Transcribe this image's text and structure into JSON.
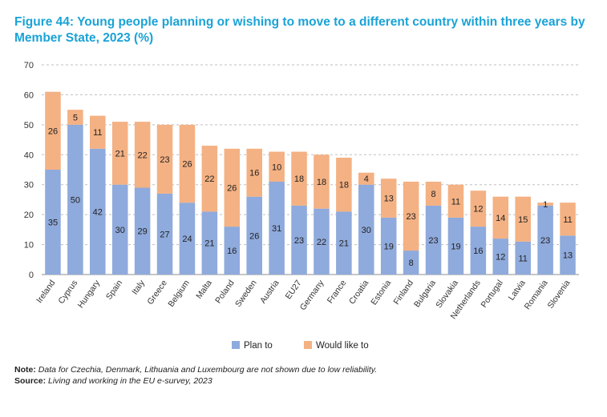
{
  "title": "Figure 44: Young people planning or wishing to move to a different country within three years by Member State, 2023 (%)",
  "note": {
    "note_label": "Note:",
    "note_text": "Data for Czechia, Denmark, Lithuania and Luxembourg are not shown due to low reliability.",
    "source_label": "Source:",
    "source_text": "Living and working in the EU e-survey, 2023"
  },
  "colors": {
    "title": "#1aa3d6",
    "plan_to": "#8faadc",
    "would_like_to": "#f4b183",
    "grid": "#bfbfbf"
  },
  "chart_data": {
    "type": "bar",
    "stacked": true,
    "categories": [
      "Ireland",
      "Cyprus",
      "Hungary",
      "Spain",
      "Italy",
      "Greece",
      "Belgium",
      "Malta",
      "Poland",
      "Sweden",
      "Austria",
      "EU27",
      "Germany",
      "France",
      "Croatia",
      "Estonia",
      "Finland",
      "Bulgaria",
      "Slovakia",
      "Netherlands",
      "Portugal",
      "Latvia",
      "Romania",
      "Slovenia"
    ],
    "series": [
      {
        "name": "Plan to",
        "color": "#8faadc",
        "values": [
          35,
          50,
          42,
          30,
          29,
          27,
          24,
          21,
          16,
          26,
          31,
          23,
          22,
          21,
          30,
          19,
          8,
          23,
          19,
          16,
          12,
          11,
          23,
          13
        ]
      },
      {
        "name": "Would like to",
        "color": "#f4b183",
        "values": [
          26,
          5,
          11,
          21,
          22,
          23,
          26,
          22,
          26,
          16,
          10,
          18,
          18,
          18,
          4,
          13,
          23,
          8,
          11,
          12,
          14,
          15,
          1,
          11
        ]
      }
    ],
    "ylim": [
      0,
      70
    ],
    "yticks": [
      0,
      10,
      20,
      30,
      40,
      50,
      60,
      70
    ],
    "grid": true,
    "legend_position": "bottom"
  }
}
